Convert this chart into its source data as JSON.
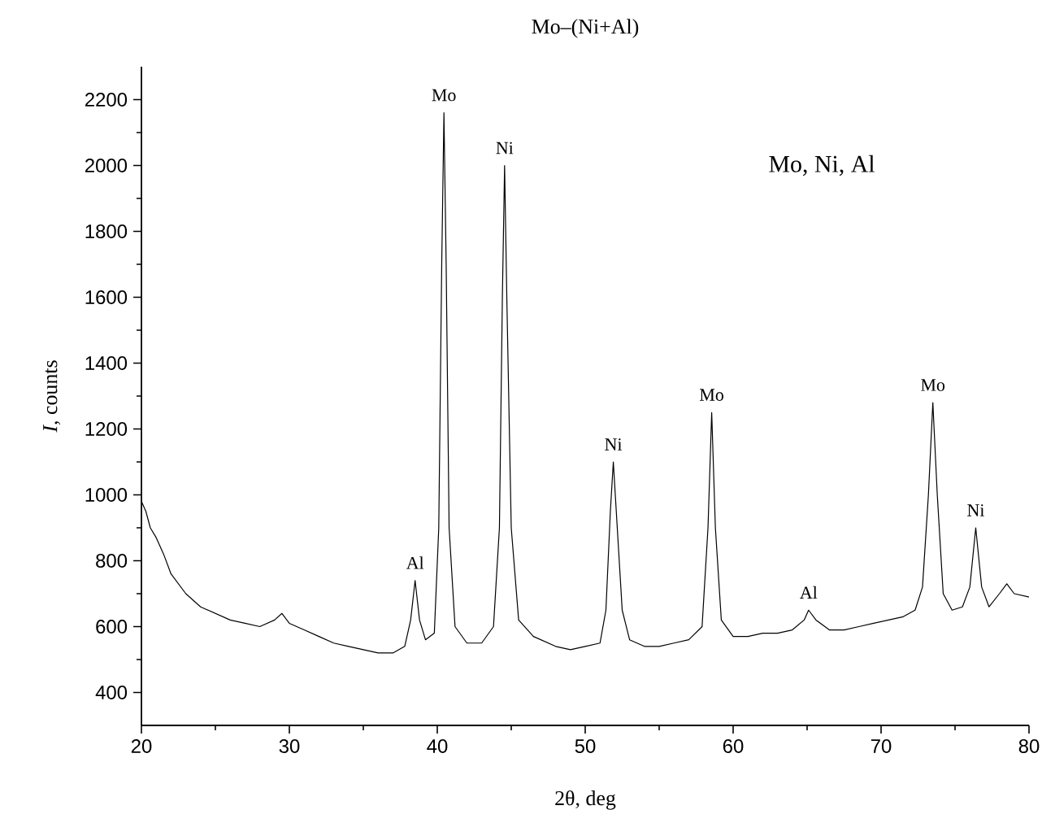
{
  "chart_data": {
    "type": "line",
    "title": "Mo–(Ni+Al)",
    "xlabel": "2θ, deg",
    "ylabel": "*I*, counts",
    "xlim": [
      20,
      80
    ],
    "ylim": [
      300,
      2300
    ],
    "xticks": [
      20,
      30,
      40,
      50,
      60,
      70,
      80
    ],
    "yticks": [
      400,
      600,
      800,
      1000,
      1200,
      1400,
      1600,
      1800,
      2000,
      2200
    ],
    "grid": false,
    "annotations": [
      {
        "text": "Al",
        "x": 38.5,
        "y": 740
      },
      {
        "text": "Mo",
        "x": 40.45,
        "y": 2160
      },
      {
        "text": "Ni",
        "x": 44.55,
        "y": 2000
      },
      {
        "text": "Ni",
        "x": 51.9,
        "y": 1100
      },
      {
        "text": "Mo",
        "x": 58.55,
        "y": 1250
      },
      {
        "text": "Al",
        "x": 65.1,
        "y": 650
      },
      {
        "text": "Mo",
        "x": 73.5,
        "y": 1280
      },
      {
        "text": "Ni",
        "x": 76.4,
        "y": 900
      },
      "Mo, Ni, Al"
    ],
    "series": [
      {
        "color": "#000000",
        "x": [
          20,
          20.3,
          20.6,
          21,
          21.5,
          22,
          23,
          24,
          25,
          26,
          27,
          28,
          29,
          29.5,
          30,
          31,
          32,
          33,
          34,
          35,
          36,
          37,
          37.8,
          38.2,
          38.5,
          38.8,
          39.2,
          39.8,
          40.1,
          40.3,
          40.45,
          40.6,
          40.8,
          41.2,
          42,
          43,
          43.8,
          44.2,
          44.4,
          44.55,
          44.7,
          45,
          45.5,
          46.5,
          48,
          49,
          50,
          51,
          51.4,
          51.7,
          51.9,
          52.1,
          52.5,
          53,
          54,
          55,
          56,
          57,
          57.9,
          58.3,
          58.55,
          58.8,
          59.2,
          60,
          61,
          62,
          63,
          64,
          64.8,
          65.1,
          65.6,
          66.5,
          67.5,
          68.5,
          69.5,
          70.5,
          71.5,
          72.3,
          72.8,
          73.2,
          73.5,
          73.8,
          74.2,
          74.8,
          75.5,
          76,
          76.4,
          76.8,
          77.3,
          78,
          78.5,
          79,
          80
        ],
        "values": [
          980,
          950,
          900,
          870,
          820,
          760,
          700,
          660,
          640,
          620,
          610,
          600,
          620,
          640,
          610,
          590,
          570,
          550,
          540,
          530,
          520,
          520,
          540,
          620,
          740,
          620,
          560,
          580,
          900,
          1700,
          2160,
          1700,
          900,
          600,
          550,
          550,
          600,
          900,
          1600,
          2000,
          1600,
          900,
          620,
          570,
          540,
          530,
          540,
          550,
          650,
          950,
          1100,
          950,
          650,
          560,
          540,
          540,
          550,
          560,
          600,
          900,
          1250,
          900,
          620,
          570,
          570,
          580,
          580,
          590,
          620,
          650,
          620,
          590,
          590,
          600,
          610,
          620,
          630,
          650,
          720,
          1000,
          1280,
          1000,
          700,
          650,
          660,
          720,
          900,
          720,
          660,
          700,
          730,
          700,
          690
        ]
      }
    ]
  }
}
